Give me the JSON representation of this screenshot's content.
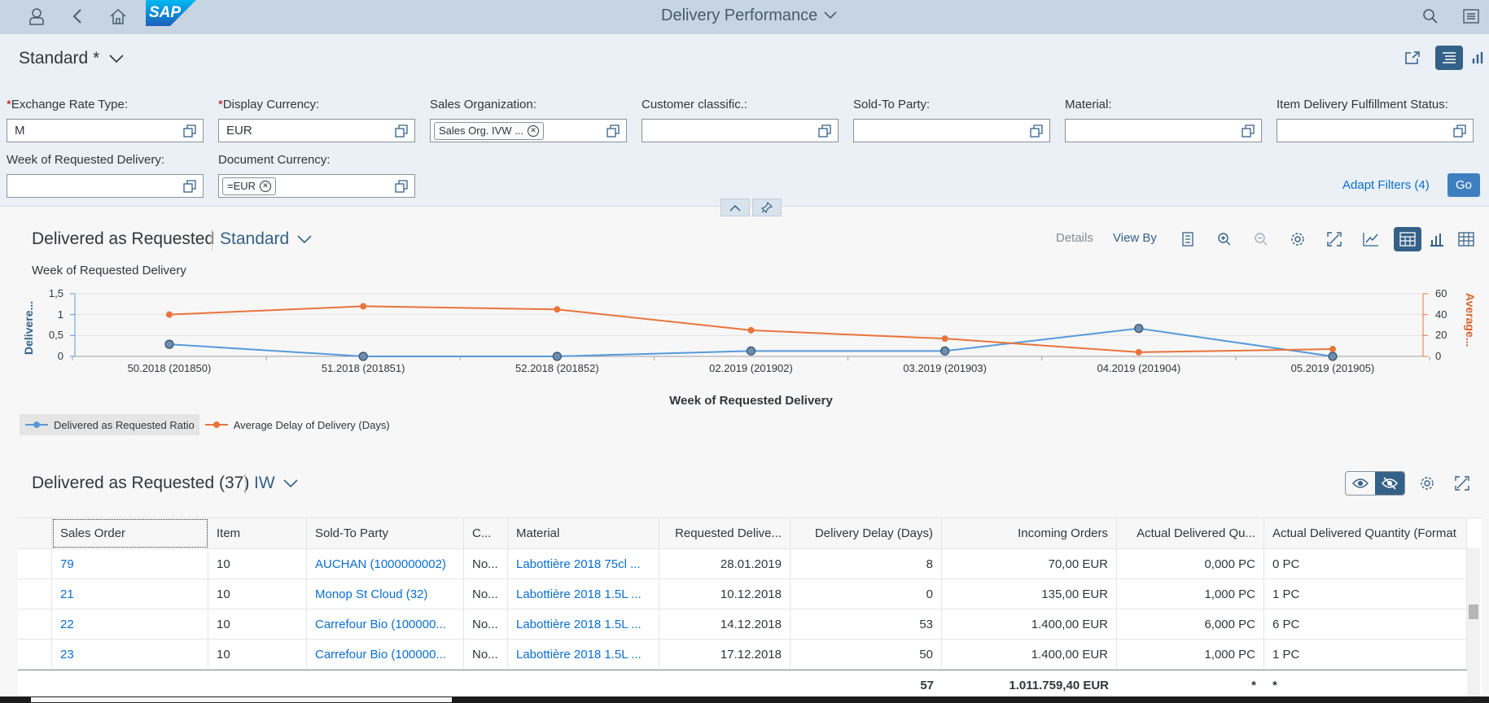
{
  "shell": {
    "title": "Delivery Performance",
    "logo_text": "SAP",
    "icons": [
      "user-icon",
      "back-icon",
      "home-icon",
      "search-icon",
      "menu-icon"
    ]
  },
  "filter_bar": {
    "variant": "Standard *",
    "fields": [
      {
        "label": "Exchange Rate Type:",
        "required": true,
        "value": "M"
      },
      {
        "label": "Display Currency:",
        "required": true,
        "value": "EUR"
      },
      {
        "label": "Sales Organization:",
        "required": false,
        "token": "Sales Org. IVW ..."
      },
      {
        "label": "Customer classific.:",
        "required": false,
        "value": ""
      },
      {
        "label": "Sold-To Party:",
        "required": false,
        "value": ""
      },
      {
        "label": "Material:",
        "required": false,
        "value": ""
      },
      {
        "label": "Item Delivery Fulfillment Status:",
        "required": false,
        "value": ""
      },
      {
        "label": "Week of Requested Delivery:",
        "required": false,
        "value": ""
      },
      {
        "label": "Document Currency:",
        "required": false,
        "token": "=EUR"
      }
    ],
    "adapt_filters": "Adapt Filters (4)",
    "go": "Go"
  },
  "chart_section": {
    "title": "Delivered as Requested",
    "variant": "Standard",
    "details": "Details",
    "view_by": "View By",
    "subtitle": "Week of Requested Delivery"
  },
  "chart_data": {
    "type": "line",
    "x": [
      "50.2018 (201850)",
      "51.2018 (201851)",
      "52.2018 (201852)",
      "02.2019 (201902)",
      "03.2019 (201903)",
      "04.2019 (201904)",
      "05.2019 (201905)"
    ],
    "xlabel": "Week of Requested Delivery",
    "y_left_label": "Delivere...",
    "y_right_label": "Average...",
    "y_left_ticks": [
      "1,5",
      "1",
      "0,5",
      "0"
    ],
    "y_right_ticks": [
      "60",
      "40",
      "20",
      "0"
    ],
    "y_left_lim": [
      0,
      1.5
    ],
    "y_right_lim": [
      0,
      60
    ],
    "grid": true,
    "legend_position": "bottom-left",
    "series": [
      {
        "name": "Delivered as Requested Ratio",
        "axis": "left",
        "color": "#5899da",
        "values": [
          0.29,
          0,
          0,
          0.13,
          0.13,
          0.67,
          0
        ]
      },
      {
        "name": "Average Delay of Delivery (Days)",
        "axis": "right",
        "color": "#e8743b",
        "values": [
          40,
          48,
          45,
          25,
          17,
          4,
          7
        ]
      }
    ]
  },
  "table_section": {
    "title": "Delivered as Requested (37)",
    "variant": "IW",
    "columns": [
      "Sales Order",
      "Item",
      "Sold-To Party",
      "C...",
      "Material",
      "Requested Delive...",
      "Delivery Delay (Days)",
      "Incoming Orders",
      "Actual Delivered Qu...",
      "Actual Delivered Quantity (Format"
    ],
    "rows": [
      [
        "79",
        "10",
        "AUCHAN (1000000002)",
        "No...",
        "Labottière 2018 75cl ...",
        "28.01.2019",
        "8",
        "70,00  EUR",
        "0,000  PC",
        "0 PC"
      ],
      [
        "21",
        "10",
        "Monop St Cloud (32)",
        "No...",
        "Labottière 2018 1.5L ...",
        "10.12.2018",
        "0",
        "135,00  EUR",
        "1,000  PC",
        "1 PC"
      ],
      [
        "22",
        "10",
        "Carrefour Bio (100000...",
        "No...",
        "Labottière 2018 1.5L ...",
        "14.12.2018",
        "53",
        "1.400,00  EUR",
        "6,000  PC",
        "6 PC"
      ],
      [
        "23",
        "10",
        "Carrefour Bio (100000...",
        "No...",
        "Labottière 2018 1.5L ...",
        "17.12.2018",
        "50",
        "1.400,00  EUR",
        "1,000  PC",
        "1 PC"
      ]
    ],
    "totals": {
      "delay": "57",
      "orders": "1.011.759,40  EUR",
      "qty": "*",
      "qty_fmt": "*"
    }
  }
}
